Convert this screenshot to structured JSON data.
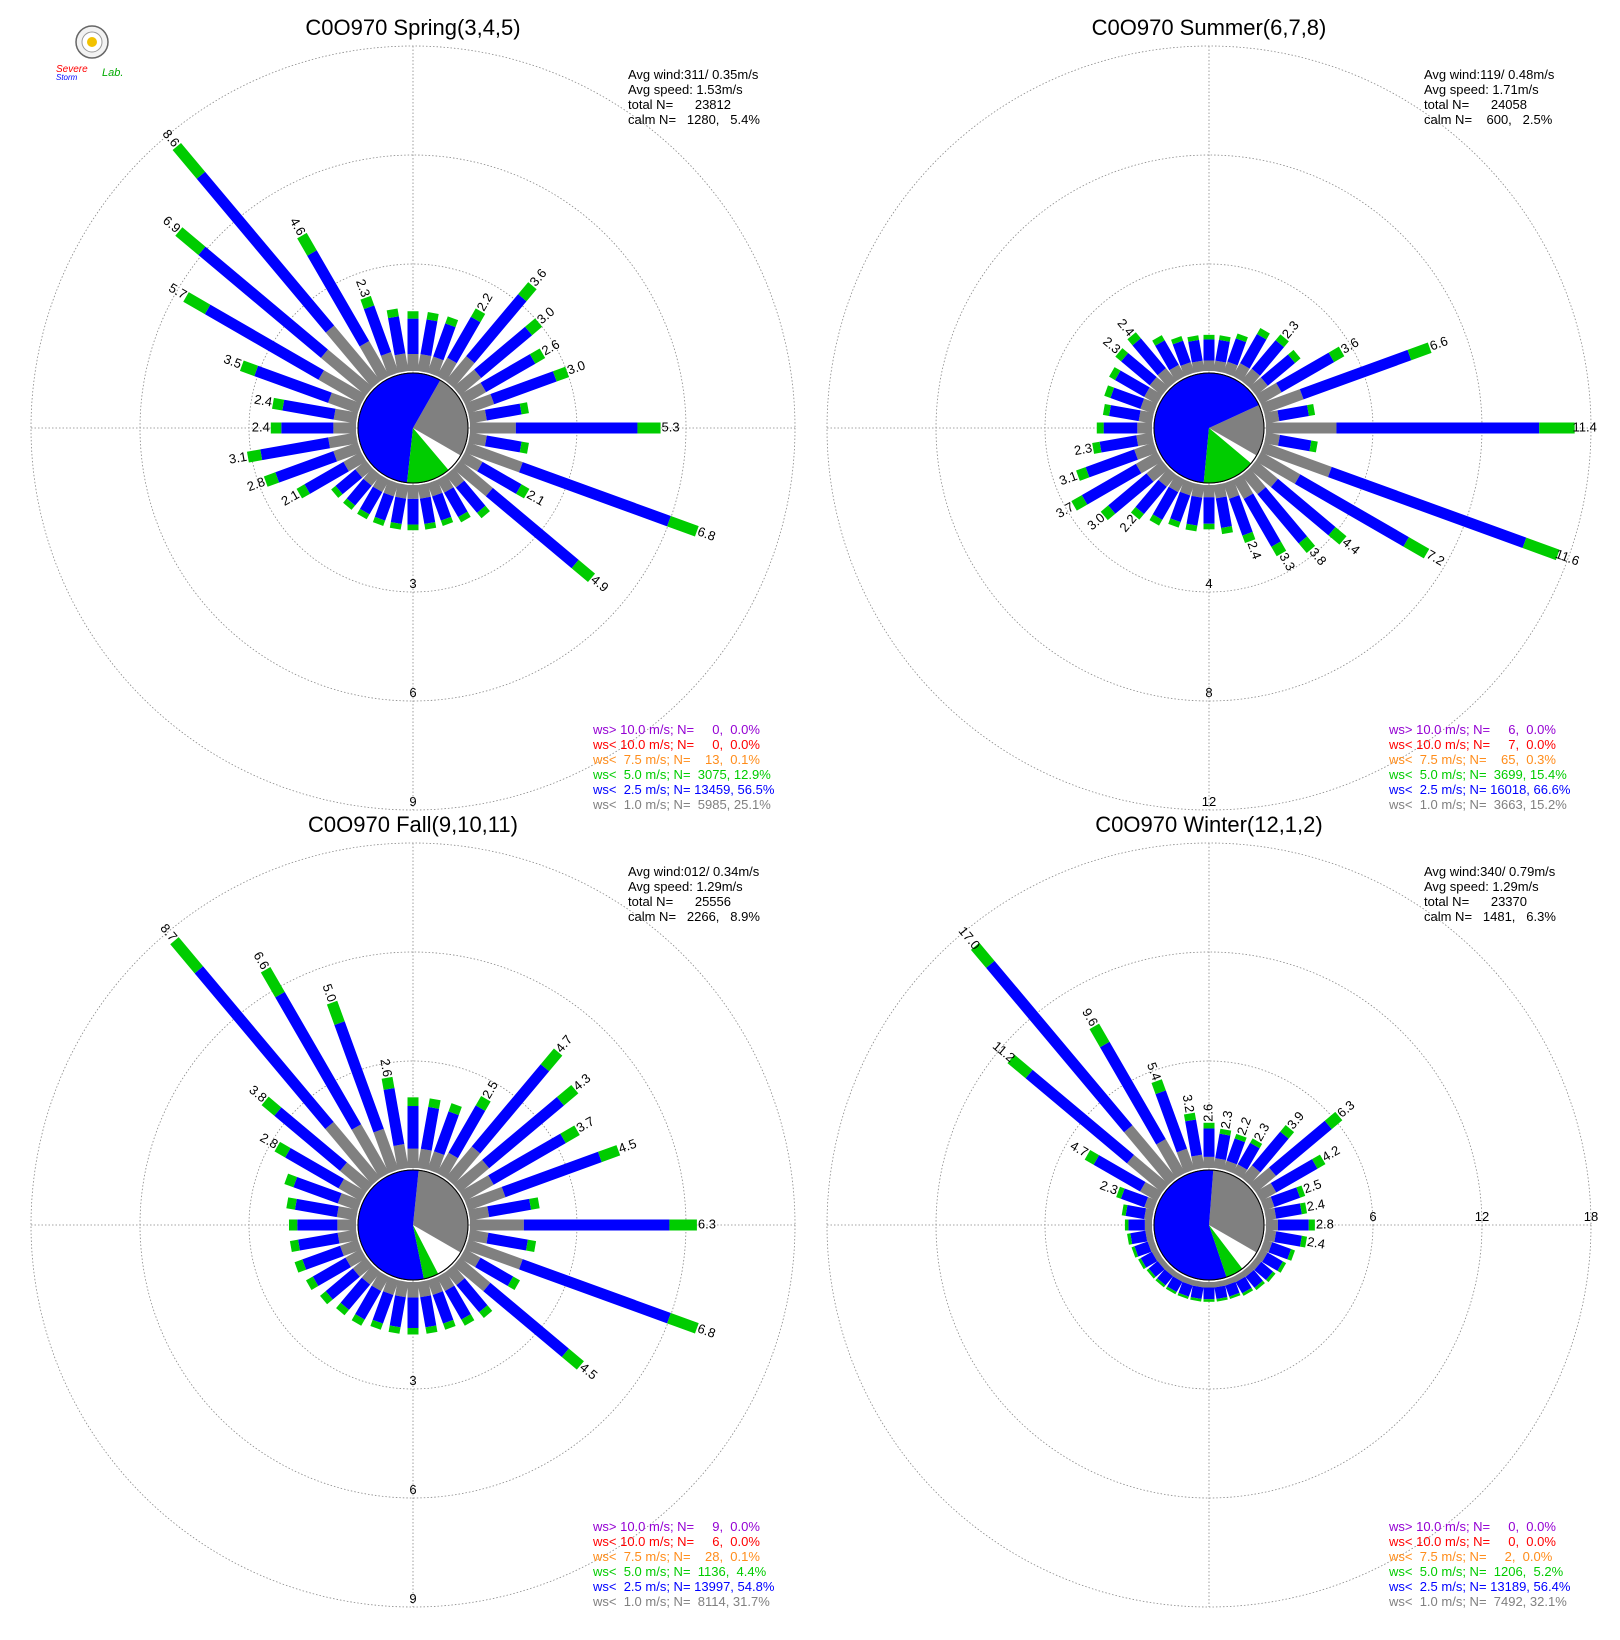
{
  "colors": {
    "calm": "#808080",
    "lt1": "#808080",
    "lt2_5": "#0000ff",
    "lt5": "#00cc00",
    "lt7_5": "#ff8c1a",
    "lt10": "#ff0000",
    "gt10": "#9400d3"
  },
  "logo": {
    "line1": "Severe",
    "line2": "Storm",
    "line3": "Lab."
  },
  "chart_data": [
    {
      "type": "polar-bar",
      "title": "C0O970 Spring(3,4,5)",
      "stats": [
        "Avg wind:311/ 0.35m/s",
        "Avg speed: 1.53m/s",
        "total N=      23812",
        "calm N=   1280,   5.4%"
      ],
      "ring_labels": [
        "3",
        "6",
        "9"
      ],
      "rmax": 9,
      "legend": [
        {
          "label": "ws> 10.0 m/s; N=     0,  0.0%",
          "color": "#9400d3"
        },
        {
          "label": "ws< 10.0 m/s; N=     0,  0.0%",
          "color": "#ff0000"
        },
        {
          "label": "ws<  7.5 m/s; N=    13,  0.1%",
          "color": "#ff8c1a"
        },
        {
          "label": "ws<  5.0 m/s; N=  3075, 12.9%",
          "color": "#00cc00"
        },
        {
          "label": "ws<  2.5 m/s; N= 13459, 56.5%",
          "color": "#0000ff"
        },
        {
          "label": "ws<  1.0 m/s; N=  5985, 25.1%",
          "color": "#808080"
        }
      ],
      "pie": [
        25.1,
        56.5,
        12.9
      ],
      "directions": [
        {
          "dir": 90,
          "total": 5.3,
          "label": "5.3"
        },
        {
          "dir": 100,
          "total": 1.7
        },
        {
          "dir": 110,
          "total": 6.8,
          "label": "6.8"
        },
        {
          "dir": 120,
          "total": 2.1,
          "label": "2.1"
        },
        {
          "dir": 130,
          "total": 4.9,
          "label": "4.9"
        },
        {
          "dir": 140,
          "total": 1.6
        },
        {
          "dir": 150,
          "total": 1.4
        },
        {
          "dir": 160,
          "total": 1.3
        },
        {
          "dir": 170,
          "total": 1.3
        },
        {
          "dir": 180,
          "total": 1.3
        },
        {
          "dir": 190,
          "total": 1.3
        },
        {
          "dir": 200,
          "total": 1.3
        },
        {
          "dir": 210,
          "total": 1.3
        },
        {
          "dir": 220,
          "total": 1.3
        },
        {
          "dir": 230,
          "total": 1.3
        },
        {
          "dir": 240,
          "total": 2.1,
          "label": "2.1"
        },
        {
          "dir": 250,
          "total": 2.8,
          "label": "2.8"
        },
        {
          "dir": 260,
          "total": 3.1,
          "label": "3.1"
        },
        {
          "dir": 270,
          "total": 2.4,
          "label": "2.4"
        },
        {
          "dir": 280,
          "total": 2.4,
          "label": "2.4"
        },
        {
          "dir": 290,
          "total": 3.5,
          "label": "3.5"
        },
        {
          "dir": 300,
          "total": 5.7,
          "label": "5.7"
        },
        {
          "dir": 310,
          "total": 6.9,
          "label": "6.9"
        },
        {
          "dir": 320,
          "total": 8.6,
          "label": "8.6"
        },
        {
          "dir": 330,
          "total": 4.6,
          "label": "4.6"
        },
        {
          "dir": 340,
          "total": 2.3,
          "label": "2.3"
        },
        {
          "dir": 350,
          "total": 1.8
        },
        {
          "dir": 0,
          "total": 1.7
        },
        {
          "dir": 10,
          "total": 1.7
        },
        {
          "dir": 20,
          "total": 1.7
        },
        {
          "dir": 30,
          "total": 2.2,
          "label": "2.2"
        },
        {
          "dir": 40,
          "total": 3.6,
          "label": "3.6"
        },
        {
          "dir": 50,
          "total": 3.0,
          "label": "3.0"
        },
        {
          "dir": 60,
          "total": 2.6,
          "label": "2.6"
        },
        {
          "dir": 70,
          "total": 3.0,
          "label": "3.0"
        },
        {
          "dir": 80,
          "total": 1.7
        }
      ]
    },
    {
      "type": "polar-bar",
      "title": "C0O970 Summer(6,7,8)",
      "stats": [
        "Avg wind:119/ 0.48m/s",
        "Avg speed: 1.71m/s",
        "total N=      24058",
        "calm N=    600,   2.5%"
      ],
      "ring_labels": [
        "4",
        "8",
        "12"
      ],
      "rmax": 12,
      "legend": [
        {
          "label": "ws> 10.0 m/s; N=     6,  0.0%",
          "color": "#9400d3"
        },
        {
          "label": "ws< 10.0 m/s; N=     7,  0.0%",
          "color": "#ff0000"
        },
        {
          "label": "ws<  7.5 m/s; N=    65,  0.3%",
          "color": "#ff8c1a"
        },
        {
          "label": "ws<  5.0 m/s; N=  3699, 15.4%",
          "color": "#00cc00"
        },
        {
          "label": "ws<  2.5 m/s; N= 16018, 66.6%",
          "color": "#0000ff"
        },
        {
          "label": "ws<  1.0 m/s; N=  3663, 15.2%",
          "color": "#808080"
        }
      ],
      "pie": [
        15.2,
        66.6,
        15.4
      ],
      "directions": [
        {
          "dir": 90,
          "total": 11.4,
          "label": "11.4"
        },
        {
          "dir": 100,
          "total": 2.0
        },
        {
          "dir": 110,
          "total": 11.6,
          "label": "11.6"
        },
        {
          "dir": 120,
          "total": 7.2,
          "label": "7.2"
        },
        {
          "dir": 130,
          "total": 4.4,
          "label": "4.4"
        },
        {
          "dir": 140,
          "total": 3.8,
          "label": "3.8"
        },
        {
          "dir": 150,
          "total": 3.3,
          "label": "3.3"
        },
        {
          "dir": 160,
          "total": 2.4,
          "label": "2.4"
        },
        {
          "dir": 170,
          "total": 1.9
        },
        {
          "dir": 180,
          "total": 1.7
        },
        {
          "dir": 190,
          "total": 1.8
        },
        {
          "dir": 200,
          "total": 1.8
        },
        {
          "dir": 210,
          "total": 2.0
        },
        {
          "dir": 220,
          "total": 2.2,
          "label": "2.2"
        },
        {
          "dir": 230,
          "total": 3.0,
          "label": "3.0"
        },
        {
          "dir": 240,
          "total": 3.7,
          "label": "3.7"
        },
        {
          "dir": 250,
          "total": 3.1,
          "label": "3.1"
        },
        {
          "dir": 260,
          "total": 2.3,
          "label": "2.3"
        },
        {
          "dir": 270,
          "total": 2.1
        },
        {
          "dir": 280,
          "total": 1.9
        },
        {
          "dir": 290,
          "total": 2.0
        },
        {
          "dir": 300,
          "total": 2.1
        },
        {
          "dir": 310,
          "total": 2.3,
          "label": "2.3"
        },
        {
          "dir": 320,
          "total": 2.4,
          "label": "2.4"
        },
        {
          "dir": 330,
          "total": 1.8
        },
        {
          "dir": 340,
          "total": 1.5
        },
        {
          "dir": 350,
          "total": 1.4
        },
        {
          "dir": 0,
          "total": 1.4
        },
        {
          "dir": 10,
          "total": 1.4
        },
        {
          "dir": 20,
          "total": 1.6
        },
        {
          "dir": 30,
          "total": 2.1
        },
        {
          "dir": 40,
          "total": 2.3,
          "label": "2.3"
        },
        {
          "dir": 50,
          "total": 2.2
        },
        {
          "dir": 60,
          "total": 3.6,
          "label": "3.6"
        },
        {
          "dir": 70,
          "total": 6.6,
          "label": "6.6"
        },
        {
          "dir": 80,
          "total": 1.9
        }
      ]
    },
    {
      "type": "polar-bar",
      "title": "C0O970 Fall(9,10,11)",
      "stats": [
        "Avg wind:012/ 0.34m/s",
        "Avg speed: 1.29m/s",
        "total N=      25556",
        "calm N=   2266,   8.9%"
      ],
      "ring_labels": [
        "3",
        "6",
        "9"
      ],
      "rmax": 9,
      "legend": [
        {
          "label": "ws> 10.0 m/s; N=     9,  0.0%",
          "color": "#9400d3"
        },
        {
          "label": "ws< 10.0 m/s; N=     6,  0.0%",
          "color": "#ff0000"
        },
        {
          "label": "ws<  7.5 m/s; N=    28,  0.1%",
          "color": "#ff8c1a"
        },
        {
          "label": "ws<  5.0 m/s; N=  1136,  4.4%",
          "color": "#00cc00"
        },
        {
          "label": "ws<  2.5 m/s; N= 13997, 54.8%",
          "color": "#0000ff"
        },
        {
          "label": "ws<  1.0 m/s; N=  8114, 31.7%",
          "color": "#808080"
        }
      ],
      "pie": [
        31.7,
        54.8,
        4.4
      ],
      "directions": [
        {
          "dir": 90,
          "total": 6.3,
          "label": "6.3"
        },
        {
          "dir": 100,
          "total": 1.9
        },
        {
          "dir": 110,
          "total": 6.8,
          "label": "6.8"
        },
        {
          "dir": 120,
          "total": 1.8
        },
        {
          "dir": 130,
          "total": 4.5,
          "label": "4.5"
        },
        {
          "dir": 140,
          "total": 1.7
        },
        {
          "dir": 150,
          "total": 1.6
        },
        {
          "dir": 160,
          "total": 1.5
        },
        {
          "dir": 170,
          "total": 1.5
        },
        {
          "dir": 180,
          "total": 1.5
        },
        {
          "dir": 190,
          "total": 1.5
        },
        {
          "dir": 200,
          "total": 1.5
        },
        {
          "dir": 210,
          "total": 1.6
        },
        {
          "dir": 220,
          "total": 1.6
        },
        {
          "dir": 230,
          "total": 1.7
        },
        {
          "dir": 240,
          "total": 1.8
        },
        {
          "dir": 250,
          "total": 1.9
        },
        {
          "dir": 260,
          "total": 1.9
        },
        {
          "dir": 270,
          "total": 1.9
        },
        {
          "dir": 280,
          "total": 2.0
        },
        {
          "dir": 290,
          "total": 2.2
        },
        {
          "dir": 300,
          "total": 2.8,
          "label": "2.8"
        },
        {
          "dir": 310,
          "total": 3.8,
          "label": "3.8"
        },
        {
          "dir": 320,
          "total": 8.7,
          "label": "8.7"
        },
        {
          "dir": 330,
          "total": 6.6,
          "label": "6.6"
        },
        {
          "dir": 340,
          "total": 5.0,
          "label": "5.0"
        },
        {
          "dir": 350,
          "total": 2.6,
          "label": "2.6"
        },
        {
          "dir": 0,
          "total": 2.0
        },
        {
          "dir": 10,
          "total": 2.0
        },
        {
          "dir": 20,
          "total": 2.0
        },
        {
          "dir": 30,
          "total": 2.5,
          "label": "2.5"
        },
        {
          "dir": 40,
          "total": 4.7,
          "label": "4.7"
        },
        {
          "dir": 50,
          "total": 4.3,
          "label": "4.3"
        },
        {
          "dir": 60,
          "total": 3.7,
          "label": "3.7"
        },
        {
          "dir": 70,
          "total": 4.5,
          "label": "4.5"
        },
        {
          "dir": 80,
          "total": 2.0
        }
      ]
    },
    {
      "type": "polar-bar",
      "title": "C0O970 Winter(12,1,2)",
      "stats": [
        "Avg wind:340/ 0.79m/s",
        "Avg speed: 1.29m/s",
        "total N=      23370",
        "calm N=   1481,   6.3%"
      ],
      "ring_labels": [
        "6",
        "12",
        "18"
      ],
      "rmax": 18,
      "legend": [
        {
          "label": "ws> 10.0 m/s; N=     0,  0.0%",
          "color": "#9400d3"
        },
        {
          "label": "ws< 10.0 m/s; N=     0,  0.0%",
          "color": "#ff0000"
        },
        {
          "label": "ws<  7.5 m/s; N=     2,  0.0%",
          "color": "#ff8c1a"
        },
        {
          "label": "ws<  5.0 m/s; N=  1206,  5.2%",
          "color": "#00cc00"
        },
        {
          "label": "ws<  2.5 m/s; N= 13189, 56.4%",
          "color": "#0000ff"
        },
        {
          "label": "ws<  1.0 m/s; N=  7492, 32.1%",
          "color": "#808080"
        }
      ],
      "pie": [
        32.1,
        56.4,
        5.2
      ],
      "directions": [
        {
          "dir": 90,
          "total": 2.8,
          "label": "2.8"
        },
        {
          "dir": 100,
          "total": 2.4,
          "label": "2.4"
        },
        {
          "dir": 110,
          "total": 1.9
        },
        {
          "dir": 120,
          "total": 1.7
        },
        {
          "dir": 130,
          "total": 1.5
        },
        {
          "dir": 140,
          "total": 1.4
        },
        {
          "dir": 150,
          "total": 1.3
        },
        {
          "dir": 160,
          "total": 1.2
        },
        {
          "dir": 170,
          "total": 1.2
        },
        {
          "dir": 180,
          "total": 1.2
        },
        {
          "dir": 190,
          "total": 1.2
        },
        {
          "dir": 200,
          "total": 1.2
        },
        {
          "dir": 210,
          "total": 1.2
        },
        {
          "dir": 220,
          "total": 1.2
        },
        {
          "dir": 230,
          "total": 1.2
        },
        {
          "dir": 240,
          "total": 1.3
        },
        {
          "dir": 250,
          "total": 1.4
        },
        {
          "dir": 260,
          "total": 1.5
        },
        {
          "dir": 270,
          "total": 1.6
        },
        {
          "dir": 280,
          "total": 1.8
        },
        {
          "dir": 290,
          "total": 2.3,
          "label": "2.3"
        },
        {
          "dir": 300,
          "total": 4.7,
          "label": "4.7"
        },
        {
          "dir": 310,
          "total": 11.2,
          "label": "11.2"
        },
        {
          "dir": 320,
          "total": 17.0,
          "label": "17.0"
        },
        {
          "dir": 330,
          "total": 9.6,
          "label": "9.6"
        },
        {
          "dir": 340,
          "total": 5.4,
          "label": "5.4"
        },
        {
          "dir": 350,
          "total": 3.2,
          "label": "3.2"
        },
        {
          "dir": 0,
          "total": 2.6,
          "label": "2.6"
        },
        {
          "dir": 10,
          "total": 2.3,
          "label": "2.3"
        },
        {
          "dir": 20,
          "total": 2.2,
          "label": "2.2"
        },
        {
          "dir": 30,
          "total": 2.3,
          "label": "2.3"
        },
        {
          "dir": 40,
          "total": 3.9,
          "label": "3.9"
        },
        {
          "dir": 50,
          "total": 6.3,
          "label": "6.3"
        },
        {
          "dir": 60,
          "total": 4.2,
          "label": "4.2"
        },
        {
          "dir": 70,
          "total": 2.5,
          "label": "2.5"
        },
        {
          "dir": 80,
          "total": 2.4,
          "label": "2.4"
        }
      ]
    }
  ]
}
